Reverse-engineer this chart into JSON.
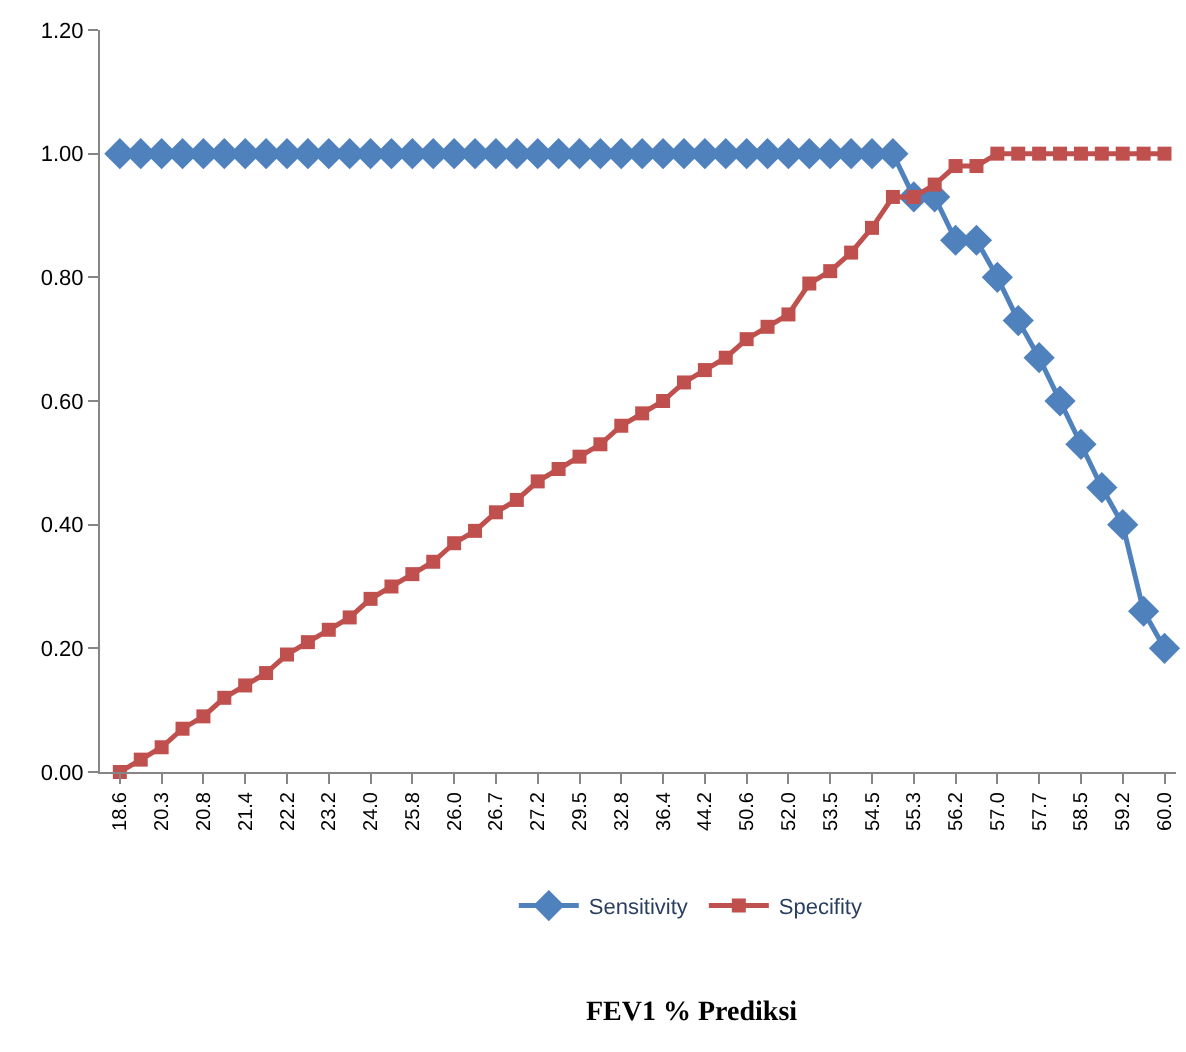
{
  "chart_data": {
    "type": "line",
    "annotations": [
      "FEV1 % Prediksi"
    ],
    "categories": [
      "18.6",
      null,
      "20.3",
      null,
      "20.8",
      null,
      "21.4",
      null,
      "22.2",
      null,
      "23.2",
      null,
      "24.0",
      null,
      "25.8",
      null,
      "26.0",
      null,
      "26.7",
      null,
      "27.2",
      null,
      "29.5",
      null,
      "32.8",
      null,
      "36.4",
      null,
      "44.2",
      null,
      "50.6",
      null,
      "52.0",
      null,
      "53.5",
      null,
      "54.5",
      null,
      "55.3",
      null,
      "56.2",
      null,
      "57.0",
      null,
      "57.7",
      null,
      "58.5",
      null,
      "59.2",
      null,
      "60.0"
    ],
    "series": [
      {
        "name": "Sensitivity",
        "color": "#4f81bd",
        "marker": "diamond",
        "values": [
          1,
          1,
          1,
          1,
          1,
          1,
          1,
          1,
          1,
          1,
          1,
          1,
          1,
          1,
          1,
          1,
          1,
          1,
          1,
          1,
          1,
          1,
          1,
          1,
          1,
          1,
          1,
          1,
          1,
          1,
          1,
          1,
          1,
          1,
          1,
          1,
          1,
          1,
          0.93,
          0.93,
          0.86,
          0.86,
          0.8,
          0.73,
          0.67,
          0.6,
          0.53,
          0.46,
          0.4,
          0.26,
          0.2
        ]
      },
      {
        "name": "Specifity",
        "color": "#c0504d",
        "marker": "square",
        "values": [
          0,
          0.02,
          0.04,
          0.07,
          0.09,
          0.12,
          0.14,
          0.16,
          0.19,
          0.21,
          0.23,
          0.25,
          0.28,
          0.3,
          0.32,
          0.34,
          0.37,
          0.39,
          0.42,
          0.44,
          0.47,
          0.49,
          0.51,
          0.53,
          0.56,
          0.58,
          0.6,
          0.63,
          0.65,
          0.67,
          0.7,
          0.72,
          0.74,
          0.79,
          0.81,
          0.84,
          0.88,
          0.93,
          0.93,
          0.95,
          0.98,
          0.98,
          1,
          1,
          1,
          1,
          1,
          1,
          1,
          1,
          1
        ]
      }
    ],
    "ylim": [
      0,
      1.2
    ],
    "yticks": [
      {
        "value": 0,
        "label": "0.00"
      },
      {
        "value": 0.2,
        "label": "0.20"
      },
      {
        "value": 0.4,
        "label": "0.40"
      },
      {
        "value": 0.6,
        "label": "0.60"
      },
      {
        "value": 0.8,
        "label": "0.80"
      },
      {
        "value": 1.0,
        "label": "1.00"
      },
      {
        "value": 1.2,
        "label": "1.20"
      }
    ],
    "legend": "bottom",
    "line_style": "solid"
  }
}
